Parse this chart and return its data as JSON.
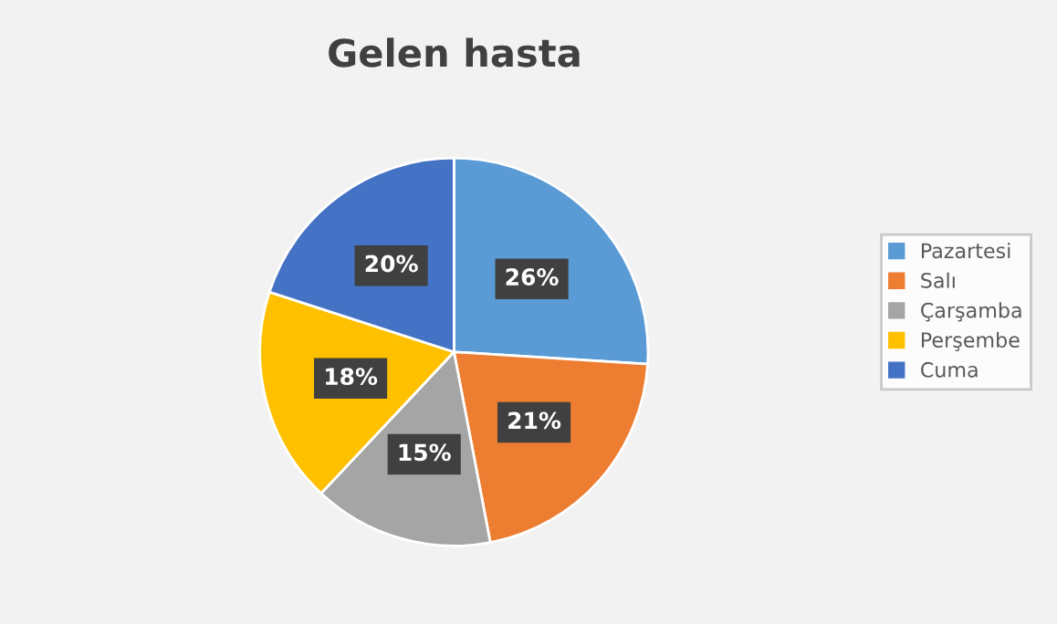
{
  "chart_data": {
    "type": "pie",
    "title": "Gelen hasta",
    "categories": [
      "Pazartesi",
      "Salı",
      "Çarşamba",
      "Perşembe",
      "Cuma"
    ],
    "values": [
      26,
      21,
      15,
      18,
      20
    ],
    "value_labels": [
      "26%",
      "21%",
      "15%",
      "18%",
      "20%"
    ],
    "colors": [
      "#5b9bd5",
      "#ed7d31",
      "#a5a5a5",
      "#ffc000",
      "#4472c4"
    ],
    "legend": "right"
  }
}
